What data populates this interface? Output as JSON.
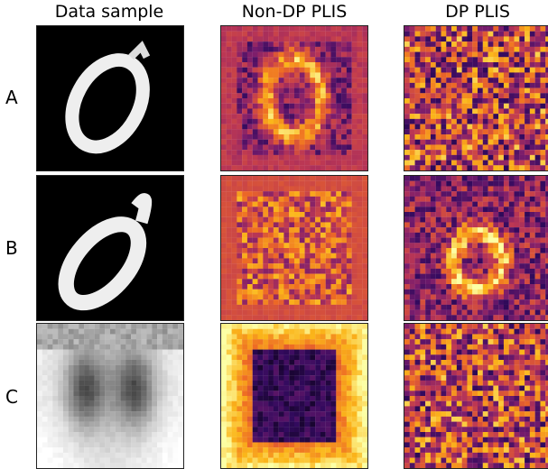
{
  "figure": {
    "column_titles": [
      "Data sample",
      "Non-DP PLIS",
      "DP PLIS"
    ],
    "row_labels": [
      "A",
      "B",
      "C"
    ],
    "rows": [
      {
        "label": "A",
        "data_sample": "mnist-digit-0",
        "non_dp": "heatmap-digit-shape",
        "dp": "heatmap-noisy"
      },
      {
        "label": "B",
        "data_sample": "mnist-digit-0-slanted",
        "non_dp": "heatmap-textured",
        "dp": "heatmap-faint-ring"
      },
      {
        "label": "C",
        "data_sample": "chest-xray",
        "non_dp": "heatmap-dark-center",
        "dp": "heatmap-noisy"
      }
    ],
    "colormaps": {
      "grayscale": [
        "#000000",
        "#ffffff"
      ],
      "inferno": [
        "#000004",
        "#320a5e",
        "#781c6d",
        "#bc3754",
        "#ed6925",
        "#fbb61a",
        "#fcffa4"
      ]
    }
  }
}
